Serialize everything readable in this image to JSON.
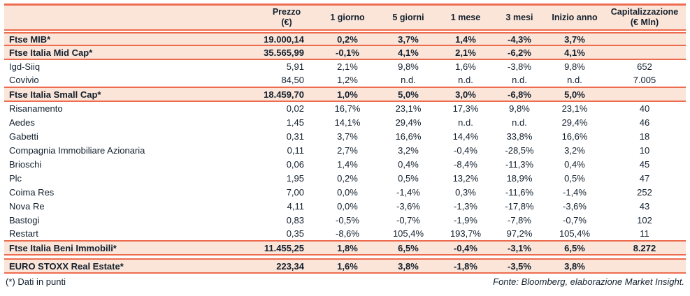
{
  "table": {
    "headers": [
      {
        "line1": "",
        "line2": ""
      },
      {
        "line1": "Prezzo",
        "line2": "(€)"
      },
      {
        "line1": "1 giorno",
        "line2": ""
      },
      {
        "line1": "5 giorni",
        "line2": ""
      },
      {
        "line1": "1 mese",
        "line2": ""
      },
      {
        "line1": "3 mesi",
        "line2": ""
      },
      {
        "line1": "Inizio anno",
        "line2": ""
      },
      {
        "line1": "Capitalizzazione",
        "line2": "(€ Mln)"
      }
    ],
    "rows": [
      {
        "type": "index",
        "label": "Ftse MIB*",
        "prezzo": "19.000,14",
        "d1": "0,2%",
        "d5": "3,7%",
        "m1": "1,4%",
        "m3": "-4,3%",
        "ytd": "3,7%",
        "cap": ""
      },
      {
        "type": "index",
        "label": "Ftse Italia Mid Cap*",
        "prezzo": "35.565,99",
        "d1": "-0,1%",
        "d5": "4,1%",
        "m1": "2,1%",
        "m3": "-6,2%",
        "ytd": "4,1%",
        "cap": ""
      },
      {
        "type": "stock",
        "label": "Igd-Siiq",
        "prezzo": "5,91",
        "d1": "2,1%",
        "d5": "9,8%",
        "m1": "1,6%",
        "m3": "-3,8%",
        "ytd": "9,8%",
        "cap": "652"
      },
      {
        "type": "stock",
        "label": "Covivio",
        "prezzo": "84,50",
        "d1": "1,2%",
        "d5": "n.d.",
        "m1": "n.d.",
        "m3": "n.d.",
        "ytd": "n.d.",
        "cap": "7.005"
      },
      {
        "type": "index",
        "label": "Ftse Italia Small Cap*",
        "prezzo": "18.459,70",
        "d1": "1,0%",
        "d5": "5,0%",
        "m1": "3,0%",
        "m3": "-6,8%",
        "ytd": "5,0%",
        "cap": ""
      },
      {
        "type": "stock",
        "label": "Risanamento",
        "prezzo": "0,02",
        "d1": "16,7%",
        "d5": "23,1%",
        "m1": "17,3%",
        "m3": "9,8%",
        "ytd": "23,1%",
        "cap": "40"
      },
      {
        "type": "stock",
        "label": "Aedes",
        "prezzo": "1,45",
        "d1": "14,1%",
        "d5": "29,4%",
        "m1": "n.d.",
        "m3": "n.d.",
        "ytd": "29,4%",
        "cap": "46"
      },
      {
        "type": "stock",
        "label": "Gabetti",
        "prezzo": "0,31",
        "d1": "3,7%",
        "d5": "16,6%",
        "m1": "14,4%",
        "m3": "33,8%",
        "ytd": "16,6%",
        "cap": "18"
      },
      {
        "type": "stock",
        "label": "Compagnia Immobiliare Azionaria",
        "prezzo": "0,11",
        "d1": "2,7%",
        "d5": "3,2%",
        "m1": "-0,4%",
        "m3": "-28,5%",
        "ytd": "3,2%",
        "cap": "10"
      },
      {
        "type": "stock",
        "label": "Brioschi",
        "prezzo": "0,06",
        "d1": "1,4%",
        "d5": "0,4%",
        "m1": "-8,4%",
        "m3": "-11,3%",
        "ytd": "0,4%",
        "cap": "45"
      },
      {
        "type": "stock",
        "label": "Plc",
        "prezzo": "1,95",
        "d1": "0,2%",
        "d5": "0,5%",
        "m1": "13,2%",
        "m3": "18,9%",
        "ytd": "0,5%",
        "cap": "47"
      },
      {
        "type": "stock",
        "label": "Coima Res",
        "prezzo": "7,00",
        "d1": "0,0%",
        "d5": "-1,4%",
        "m1": "0,3%",
        "m3": "-11,6%",
        "ytd": "-1,4%",
        "cap": "252"
      },
      {
        "type": "stock",
        "label": "Nova Re",
        "prezzo": "4,11",
        "d1": "0,0%",
        "d5": "-3,6%",
        "m1": "-1,3%",
        "m3": "-17,8%",
        "ytd": "-3,6%",
        "cap": "43"
      },
      {
        "type": "stock",
        "label": "Bastogi",
        "prezzo": "0,83",
        "d1": "-0,5%",
        "d5": "-0,7%",
        "m1": "-1,9%",
        "m3": "-7,8%",
        "ytd": "-0,7%",
        "cap": "102"
      },
      {
        "type": "stock",
        "label": "Restart",
        "prezzo": "0,35",
        "d1": "-8,6%",
        "d5": "105,4%",
        "m1": "193,7%",
        "m3": "97,2%",
        "ytd": "105,4%",
        "cap": "11"
      },
      {
        "type": "index",
        "label": "Ftse Italia Beni Immobili*",
        "prezzo": "11.455,25",
        "d1": "1,8%",
        "d5": "6,5%",
        "m1": "-0,4%",
        "m3": "-3,1%",
        "ytd": "6,5%",
        "cap": "8.272"
      },
      {
        "type": "spacer"
      },
      {
        "type": "index",
        "label": "EURO STOXX Real Estate*",
        "prezzo": "223,34",
        "d1": "1,6%",
        "d5": "3,8%",
        "m1": "-1,8%",
        "m3": "-3,5%",
        "ytd": "3,8%",
        "cap": ""
      }
    ]
  },
  "footer": {
    "note": "(*) Dati in punti",
    "source": "Fonte: Bloomberg, elaborazione Market Insight."
  },
  "colors": {
    "accent_border": "#ED6C4F",
    "highlight_bg": "#FBE5D8",
    "text": "#13202E"
  }
}
